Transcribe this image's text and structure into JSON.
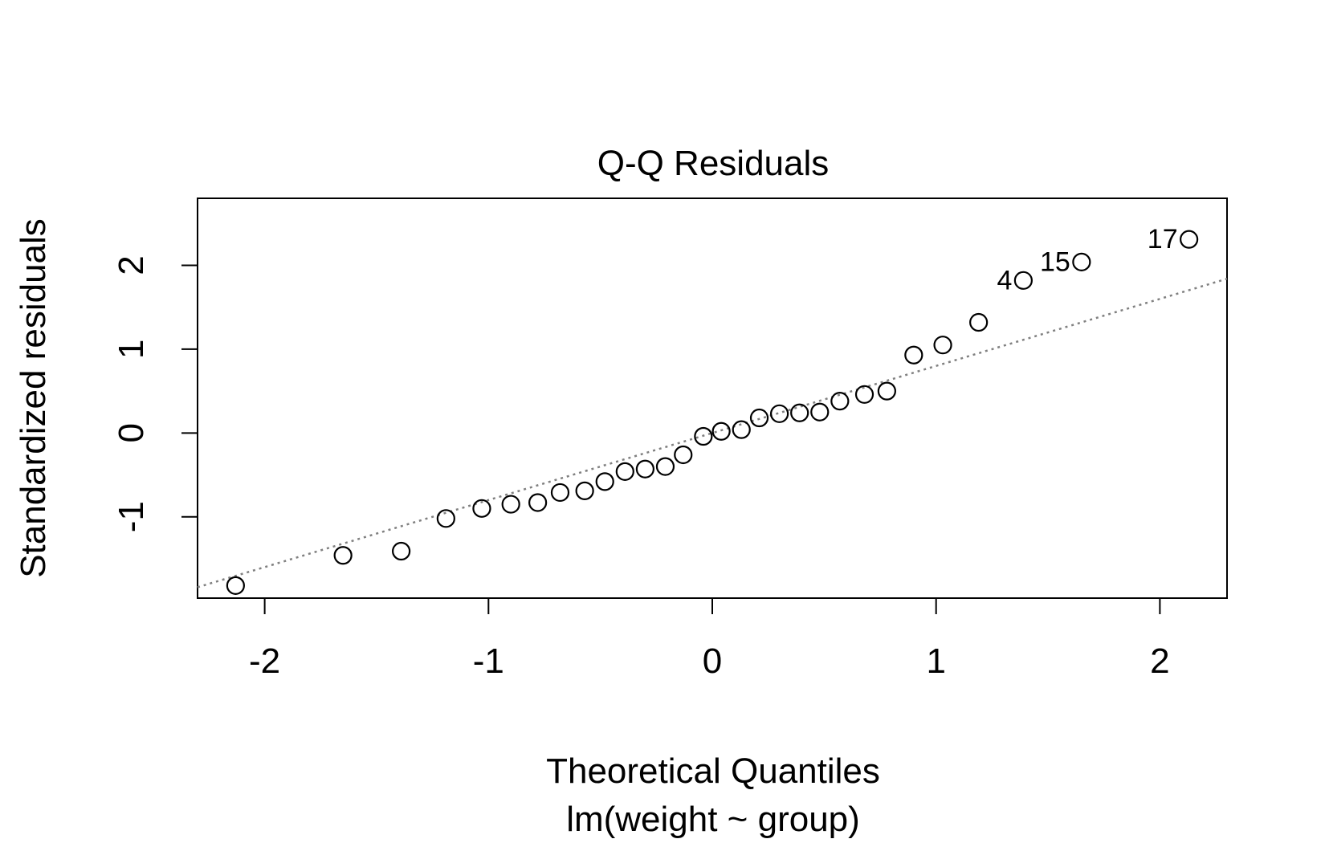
{
  "chart_data": {
    "type": "scatter",
    "title": "Q-Q Residuals",
    "xlabel": "Theoretical Quantiles",
    "subtitle": "lm(weight ~ group)",
    "ylabel": "Standardized residuals",
    "xlim": [
      -2.3,
      2.3
    ],
    "ylim": [
      -1.97,
      2.8
    ],
    "x_ticks": [
      -2,
      -1,
      0,
      1,
      2
    ],
    "x_tick_labels": [
      "-2",
      "-1",
      "0",
      "1",
      "2"
    ],
    "y_ticks": [
      -1,
      0,
      1,
      2
    ],
    "y_tick_labels": [
      "-1",
      "0",
      "1",
      "2"
    ],
    "reference_line": {
      "slope": 0.8,
      "intercept": 0.0,
      "style": "dotted",
      "color": "#808080"
    },
    "points": [
      {
        "x": -2.13,
        "y": -1.82
      },
      {
        "x": -1.65,
        "y": -1.46
      },
      {
        "x": -1.39,
        "y": -1.41
      },
      {
        "x": -1.19,
        "y": -1.02
      },
      {
        "x": -1.03,
        "y": -0.9
      },
      {
        "x": -0.9,
        "y": -0.85
      },
      {
        "x": -0.78,
        "y": -0.83
      },
      {
        "x": -0.68,
        "y": -0.71
      },
      {
        "x": -0.57,
        "y": -0.69
      },
      {
        "x": -0.48,
        "y": -0.58
      },
      {
        "x": -0.39,
        "y": -0.46
      },
      {
        "x": -0.3,
        "y": -0.43
      },
      {
        "x": -0.21,
        "y": -0.4
      },
      {
        "x": -0.13,
        "y": -0.26
      },
      {
        "x": -0.04,
        "y": -0.04
      },
      {
        "x": 0.04,
        "y": 0.02
      },
      {
        "x": 0.13,
        "y": 0.04
      },
      {
        "x": 0.21,
        "y": 0.18
      },
      {
        "x": 0.3,
        "y": 0.23
      },
      {
        "x": 0.39,
        "y": 0.24
      },
      {
        "x": 0.48,
        "y": 0.25
      },
      {
        "x": 0.57,
        "y": 0.38
      },
      {
        "x": 0.68,
        "y": 0.46
      },
      {
        "x": 0.78,
        "y": 0.5
      },
      {
        "x": 0.9,
        "y": 0.93
      },
      {
        "x": 1.03,
        "y": 1.05
      },
      {
        "x": 1.19,
        "y": 1.32
      },
      {
        "x": 1.39,
        "y": 1.82,
        "label": "4"
      },
      {
        "x": 1.65,
        "y": 2.04,
        "label": "15"
      },
      {
        "x": 2.13,
        "y": 2.31,
        "label": "17"
      }
    ]
  }
}
